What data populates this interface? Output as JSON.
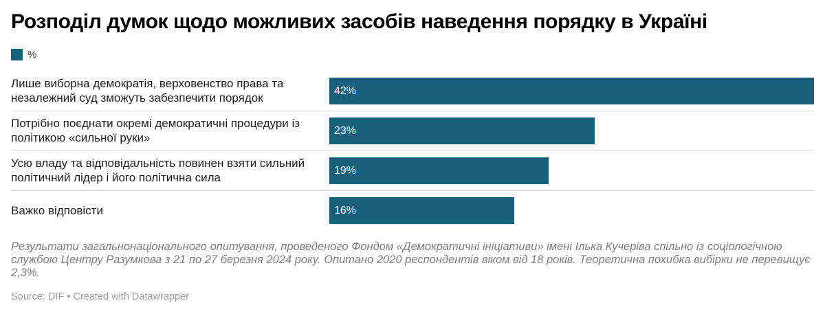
{
  "title": "Розподіл думок щодо можливих засобів наведення порядку в Україні",
  "chart_data": {
    "type": "bar",
    "orientation": "horizontal",
    "legend_label": "%",
    "bar_color": "#17607b",
    "value_suffix": "%",
    "xlim": [
      0,
      42
    ],
    "categories": [
      "Лише виборна демократія, верховенство права та незалежний суд зможуть забезпечити порядок",
      "Потрібно поєднати окремі демократичні процедури із політикою «сильної руки»",
      "Усю владу та відповідальність повинен взяти сильний політичний лідер і його політична сила",
      "Важко відповісти"
    ],
    "values": [
      42,
      23,
      19,
      16
    ]
  },
  "note": "Результати загальнонаціонального опитування, проведеного Фондом «Демократичні ініціативи» імені Ілька Кучеріва спільно із соціологічною службою Центру Разумкова з 21 по 27 березня 2024 року. Опитано 2020 респондентів віком від 18 років. Теоретична похибка вибірки не перевищує 2,3%.",
  "source": "Source: DIF • Created with Datawrapper"
}
